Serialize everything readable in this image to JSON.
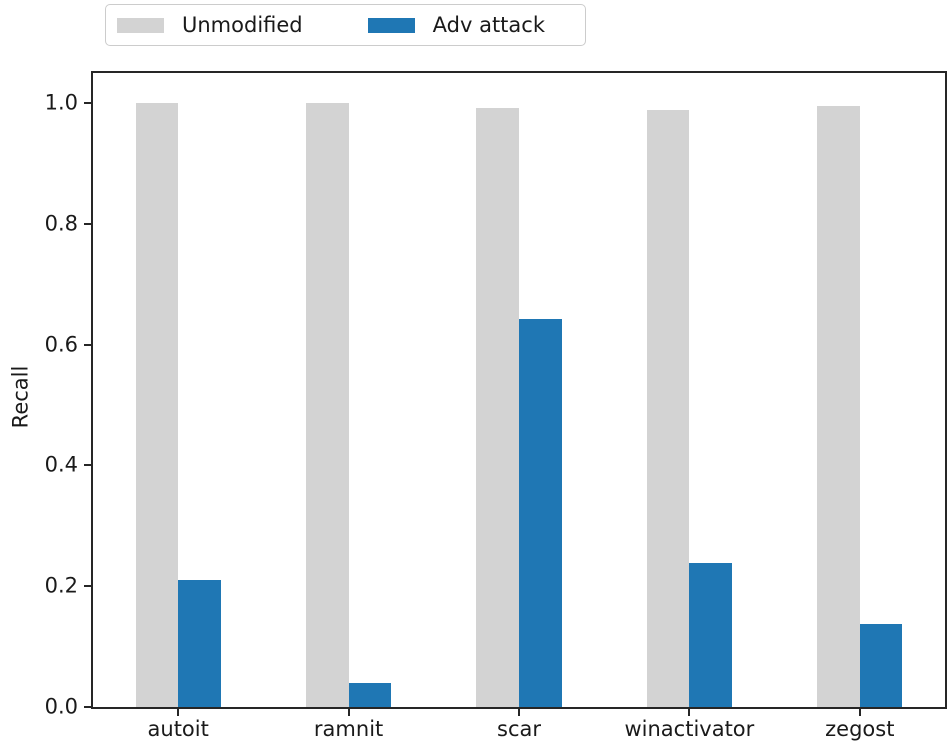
{
  "chart_data": {
    "type": "bar",
    "title": "",
    "xlabel": "",
    "ylabel": "Recall",
    "categories": [
      "autoit",
      "ramnit",
      "scar",
      "winactivator",
      "zegost"
    ],
    "series": [
      {
        "name": "Unmodified",
        "color": "#d3d3d3",
        "values": [
          1.0,
          1.0,
          0.992,
          0.988,
          0.995
        ]
      },
      {
        "name": "Adv attack",
        "color": "#1f77b4",
        "values": [
          0.21,
          0.04,
          0.643,
          0.238,
          0.138
        ]
      }
    ],
    "ylim": [
      0,
      1.05
    ],
    "yticks": [
      "0.0",
      "0.2",
      "0.4",
      "0.6",
      "0.8",
      "1.0"
    ],
    "grid": "off",
    "legend_position": "top-left-outside",
    "bar_group_width_fraction": 0.5,
    "axis_color": "#262626",
    "text_color": "#1a1a1a"
  }
}
